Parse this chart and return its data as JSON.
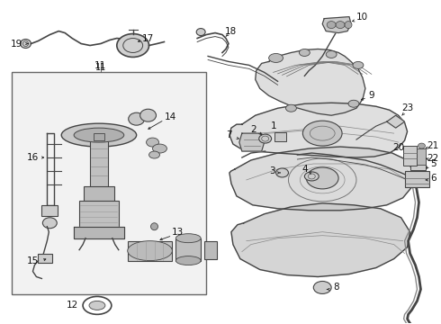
{
  "bg_color": "#ffffff",
  "line_color": "#2a2a2a",
  "label_color": "#111111",
  "box_fill": "#f5f5f5",
  "box_edge": "#888888",
  "part_gray": "#b0b0b0",
  "dark_gray": "#444444",
  "mid_gray": "#888888"
}
